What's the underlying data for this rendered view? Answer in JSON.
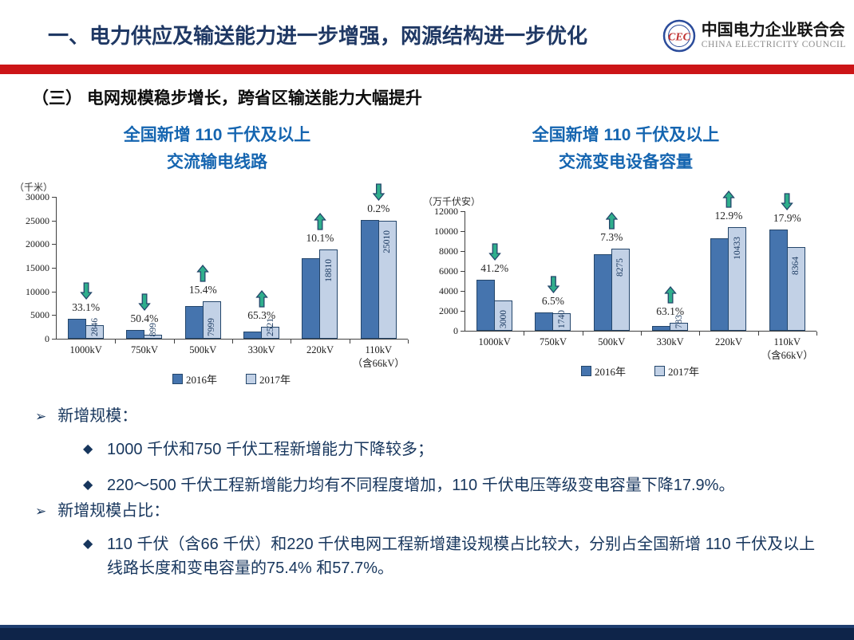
{
  "header": {
    "title": "一、电力供应及输送能力进一步增强，网源结构进一步优化",
    "logo": {
      "monogram": "CEC",
      "org_cn": "中国电力企业联合会",
      "org_en": "CHINA ELECTRICITY COUNCIL"
    }
  },
  "section": {
    "title": "（三） 电网规模稳步增长，跨省区输送能力大幅提升"
  },
  "colors": {
    "accent_red": "#CC1517",
    "title_navy": "#1F3864",
    "chart_title_blue": "#1565B0",
    "bar_2016": "#4574AE",
    "bar_2017": "#C2D1E6",
    "bar_border": "#24466B",
    "arrow_green": "#2FAE8C",
    "footer_navy": "#0E2449"
  },
  "chart_data": [
    {
      "type": "bar",
      "title_lines": [
        "全国新增 110 千伏及以上",
        "交流输电线路"
      ],
      "unit_label": "（千米）",
      "categories": [
        "1000kV",
        "750kV",
        "500kV",
        "330kV",
        "220kV",
        "110kV\n（含66kV）"
      ],
      "series": [
        {
          "name": "2016年",
          "values": [
            4254,
            1813,
            6932,
            1525,
            17085,
            25060
          ]
        },
        {
          "name": "2017年",
          "values": [
            2846,
            899,
            7999,
            2521,
            18810,
            25010
          ]
        }
      ],
      "value_labels": [
        "2846",
        "899",
        "7999",
        "2521",
        "18810",
        "25010"
      ],
      "changes": [
        {
          "direction": "down",
          "percent": "33.1%"
        },
        {
          "direction": "down",
          "percent": "50.4%"
        },
        {
          "direction": "up",
          "percent": "15.4%"
        },
        {
          "direction": "up",
          "percent": "65.3%"
        },
        {
          "direction": "up",
          "percent": "10.1%"
        },
        {
          "direction": "down",
          "percent": "0.2%"
        }
      ],
      "ylim": [
        0,
        30000
      ],
      "yticks": [
        0,
        5000,
        10000,
        15000,
        20000,
        25000,
        30000
      ],
      "legend": [
        "2016年",
        "2017年"
      ],
      "legend_position": "bottom",
      "grid": false
    },
    {
      "type": "bar",
      "title_lines": [
        "全国新增 110 千伏及以上",
        "交流变电设备容量"
      ],
      "unit_label": "（万千伏安）",
      "categories": [
        "1000kV",
        "750kV",
        "500kV",
        "330kV",
        "220kV",
        "110kV\n（含66kV）"
      ],
      "series": [
        {
          "name": "2016年",
          "values": [
            5102,
            1861,
            7712,
            480,
            9241,
            10188
          ]
        },
        {
          "name": "2017年",
          "values": [
            3000,
            1740,
            8275,
            783,
            10433,
            8364
          ]
        }
      ],
      "value_labels": [
        "3000",
        "1740",
        "8275",
        "783",
        "10433",
        "8364"
      ],
      "changes": [
        {
          "direction": "down",
          "percent": "41.2%"
        },
        {
          "direction": "down",
          "percent": "6.5%"
        },
        {
          "direction": "up",
          "percent": "7.3%"
        },
        {
          "direction": "up",
          "percent": "63.1%"
        },
        {
          "direction": "up",
          "percent": "12.9%"
        },
        {
          "direction": "down",
          "percent": "17.9%"
        }
      ],
      "ylim": [
        0,
        12000
      ],
      "yticks": [
        0,
        2000,
        4000,
        6000,
        8000,
        10000,
        12000
      ],
      "legend": [
        "2016年",
        "2017年"
      ],
      "legend_position": "bottom",
      "grid": false
    }
  ],
  "bullets": [
    {
      "marker": "➢",
      "label": "新增规模：",
      "items": [
        {
          "marker": "◆",
          "text": "1000 千伏和750 千伏工程新增能力下降较多；"
        },
        {
          "marker": "◆",
          "text": "220～500 千伏工程新增能力均有不同程度增加，110 千伏电压等级变电容量下降17.9%。"
        }
      ]
    },
    {
      "marker": "➢",
      "label": "新增规模占比：",
      "items": [
        {
          "marker": "◆",
          "text": "110 千伏（含66 千伏）和220 千伏电网工程新增建设规模占比较大，分别占全国新增 110 千伏及以上线路长度和变电容量的75.4% 和57.7%。"
        }
      ]
    }
  ]
}
